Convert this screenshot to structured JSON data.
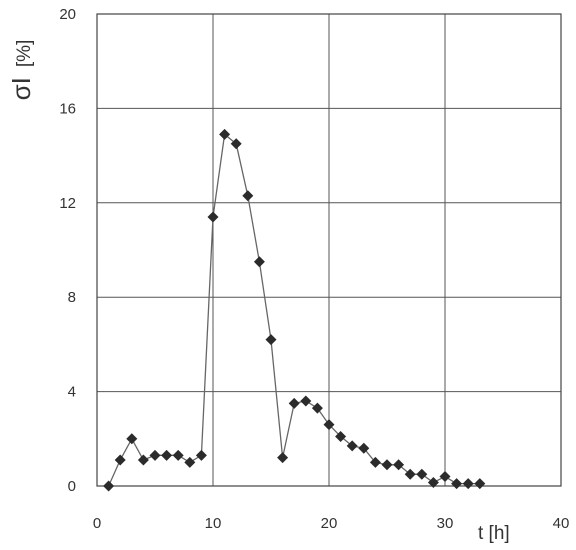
{
  "chart_data": {
    "type": "scatter",
    "xlabel": "t [h]",
    "ylabel_symbol": "σI",
    "ylabel_unit": "[%]",
    "xlim": [
      0,
      40
    ],
    "ylim": [
      0,
      20
    ],
    "x_ticks": [
      0,
      10,
      20,
      30,
      40
    ],
    "y_ticks": [
      0,
      4,
      8,
      12,
      16,
      20
    ],
    "grid": true,
    "marker": "diamond",
    "connect_points": true,
    "series_color": "#2b2b2b",
    "series": [
      {
        "points": [
          [
            1,
            0.0
          ],
          [
            2,
            1.1
          ],
          [
            3,
            2.0
          ],
          [
            4,
            1.1
          ],
          [
            5,
            1.3
          ],
          [
            6,
            1.3
          ],
          [
            7,
            1.3
          ],
          [
            8,
            1.0
          ],
          [
            9,
            1.3
          ],
          [
            10,
            11.4
          ],
          [
            11,
            14.9
          ],
          [
            12,
            14.5
          ],
          [
            13,
            12.3
          ],
          [
            14,
            9.5
          ],
          [
            15,
            6.2
          ],
          [
            16,
            1.2
          ],
          [
            17,
            3.5
          ],
          [
            18,
            3.6
          ],
          [
            19,
            3.3
          ],
          [
            20,
            2.6
          ],
          [
            21,
            2.1
          ],
          [
            22,
            1.7
          ],
          [
            23,
            1.6
          ],
          [
            24,
            1.0
          ],
          [
            25,
            0.9
          ],
          [
            26,
            0.9
          ],
          [
            27,
            0.5
          ],
          [
            28,
            0.5
          ],
          [
            29,
            0.15
          ],
          [
            30,
            0.4
          ],
          [
            31,
            0.1
          ],
          [
            32,
            0.1
          ],
          [
            33,
            0.1
          ]
        ]
      }
    ]
  }
}
